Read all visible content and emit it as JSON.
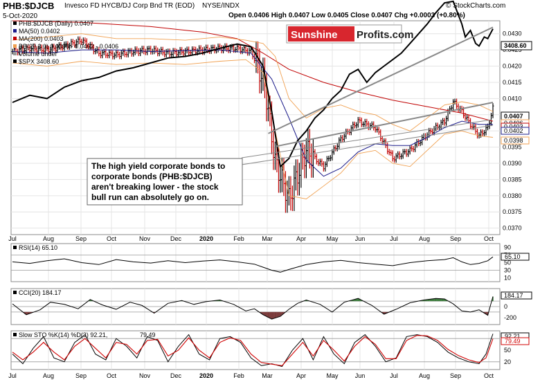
{
  "header": {
    "symbol": "PHB:$DJCB",
    "description": "Invesco FD HYCB/DJ Corp Bnd TR (EOD)",
    "exchange": "NYSE/INDX",
    "watermark": "© StockCharts.com",
    "date": "5-Oct-2020",
    "ohlc": "Open 0.0406 High 0.0407 Low 0.0405 Close 0.0407 Chg +0.0003 (+0.80%)"
  },
  "logo": {
    "part1": "Sunshine",
    "part2": "Profits.com"
  },
  "annotation": {
    "lines": [
      "The high yield corporate bonds to",
      "corporate bonds (PHB:$DJCB)",
      "aren't breaking lower - the stock",
      "bull run can absolutely go on."
    ]
  },
  "colors": {
    "price": "#000000",
    "ma50": "#1b1b8a",
    "ma200": "#c00000",
    "bb": "#f0a050",
    "spx": "#000000",
    "up": "#000000",
    "down": "#c00000",
    "osc": "#000000",
    "pos_fill": "#3a7a3a",
    "neg_fill": "#7a3a3a",
    "slow_d": "#d00000"
  },
  "chart_data": [
    {
      "type": "line",
      "panel": "price",
      "legend": [
        "PHB:$DJCB (Daily) 0.0407",
        "MA(50) 0.0402",
        "MA(200) 0.0403",
        "BB(20,2.0) 0.0398 - 0.0402 - 0.0406",
        "Volume undef",
        "$SPX 3408.60"
      ],
      "x_labels": [
        "Jul",
        "Aug",
        "Sep",
        "Oct",
        "Nov",
        "Dec",
        "2020",
        "Feb",
        "Mar",
        "Apr",
        "May",
        "Jun",
        "Jul",
        "Aug",
        "Sep",
        "Oct"
      ],
      "y_ticks": [
        "0.0430",
        "0.0425",
        "0.0420",
        "0.0415",
        "0.0410",
        "0.0405",
        "0.0400",
        "0.0395",
        "0.0390",
        "0.0385",
        "0.0380",
        "0.0375",
        "0.0370"
      ],
      "ylim": [
        0.0368,
        0.0434
      ],
      "last_labels": {
        "close": "0.0407",
        "spx": "3408.60",
        "bb_upper": "0.0406",
        "ma200": "0.0403",
        "ma50": "0.0402",
        "bb_lower": "0.0398"
      },
      "series": [
        {
          "key": "phb",
          "name": "PHB:$DJCB",
          "x": [
            0,
            10,
            20,
            32,
            40,
            50,
            60,
            70,
            80,
            90,
            100,
            110,
            120,
            130,
            138,
            142,
            146,
            152,
            160,
            170,
            180,
            190,
            200,
            210,
            220,
            230,
            240,
            250,
            255,
            260,
            265,
            270,
            275,
            278
          ],
          "y": [
            0.04245,
            0.04255,
            0.0425,
            0.04265,
            0.0428,
            0.0424,
            0.04235,
            0.04245,
            0.0425,
            0.0424,
            0.04245,
            0.0425,
            0.04255,
            0.04255,
            0.04245,
            0.042,
            0.0414,
            0.03905,
            0.0379,
            0.0394,
            0.0389,
            0.03975,
            0.0403,
            0.0401,
            0.03915,
            0.0394,
            0.0399,
            0.0403,
            0.0409,
            0.0406,
            0.0402,
            0.03985,
            0.0401,
            0.0407
          ]
        },
        {
          "key": "ma50",
          "name": "MA(50)",
          "x": [
            0,
            20,
            40,
            60,
            80,
            100,
            120,
            138,
            150,
            160,
            170,
            180,
            190,
            200,
            210,
            220,
            230,
            240,
            250,
            260,
            270,
            278
          ],
          "y": [
            0.04245,
            0.0424,
            0.0425,
            0.0425,
            0.04245,
            0.04248,
            0.0425,
            0.0424,
            0.0416,
            0.0404,
            0.0391,
            0.0386,
            0.03885,
            0.03935,
            0.0396,
            0.03955,
            0.03955,
            0.0398,
            0.0401,
            0.0403,
            0.0402,
            0.0402
          ]
        },
        {
          "key": "ma200",
          "name": "MA(200)",
          "x": [
            0,
            40,
            80,
            110,
            130,
            145,
            160,
            180,
            200,
            220,
            240,
            260,
            278
          ],
          "y": [
            0.0434,
            0.04335,
            0.04322,
            0.04305,
            0.04285,
            0.0424,
            0.0419,
            0.0415,
            0.0412,
            0.04095,
            0.04075,
            0.04055,
            0.0403
          ]
        },
        {
          "key": "bb_upper",
          "name": "BB upper",
          "x": [
            0,
            20,
            40,
            60,
            80,
            100,
            120,
            135,
            145,
            152,
            160,
            170,
            180,
            190,
            200,
            210,
            220,
            230,
            240,
            250,
            260,
            270,
            278
          ],
          "y": [
            0.0428,
            0.0429,
            0.043,
            0.04285,
            0.04285,
            0.0428,
            0.0429,
            0.0428,
            0.0427,
            0.0423,
            0.041,
            0.0404,
            0.0407,
            0.0408,
            0.0406,
            0.0405,
            0.0402,
            0.04,
            0.0404,
            0.0408,
            0.0409,
            0.0408,
            0.0406
          ]
        },
        {
          "key": "bb_lower",
          "name": "BB lower",
          "x": [
            0,
            20,
            40,
            60,
            80,
            100,
            120,
            135,
            145,
            152,
            160,
            170,
            180,
            190,
            200,
            210,
            220,
            230,
            240,
            250,
            260,
            270,
            278
          ],
          "y": [
            0.0421,
            0.042,
            0.04215,
            0.04205,
            0.0421,
            0.04205,
            0.04215,
            0.0422,
            0.0418,
            0.04,
            0.038,
            0.0379,
            0.0383,
            0.0387,
            0.0393,
            0.0394,
            0.039,
            0.0389,
            0.0394,
            0.0399,
            0.04,
            0.03985,
            0.0398
          ]
        },
        {
          "key": "spx",
          "name": "$SPX",
          "x": [
            0,
            10,
            20,
            30,
            40,
            50,
            60,
            70,
            80,
            90,
            100,
            110,
            120,
            130,
            138,
            145,
            150,
            155,
            160,
            165,
            170,
            175,
            180,
            185,
            190,
            195,
            200,
            205,
            210,
            215,
            220,
            225,
            230,
            235,
            240,
            245,
            250,
            255,
            260,
            262,
            265,
            268,
            270,
            273,
            275,
            278
          ],
          "y": [
            0.04088,
            0.0411,
            0.041,
            0.04135,
            0.04155,
            0.04165,
            0.04185,
            0.04195,
            0.0421,
            0.04225,
            0.0423,
            0.0424,
            0.04255,
            0.04268,
            0.0426,
            0.042,
            0.0406,
            0.0389,
            0.03915,
            0.0397,
            0.04,
            0.0404,
            0.04065,
            0.041,
            0.04125,
            0.04175,
            0.0419,
            0.0415,
            0.0418,
            0.042,
            0.0422,
            0.0424,
            0.0427,
            0.043,
            0.0433,
            0.04365,
            0.04395,
            0.044,
            0.0433,
            0.0429,
            0.0431,
            0.0427,
            0.04262,
            0.0429,
            0.04285,
            0.04315
          ]
        },
        {
          "key": "trend_upper",
          "name": "",
          "x": [
            148,
            278
          ],
          "y": [
            0.03992,
            0.0432
          ]
        },
        {
          "key": "trend_lower",
          "name": "",
          "x": [
            152,
            278
          ],
          "y": [
            0.03952,
            0.04088
          ]
        }
      ]
    },
    {
      "type": "line",
      "panel": "rsi",
      "legend": "RSI(14) 65.10",
      "last_label": "65.10",
      "y_ticks": [
        "90",
        "70",
        "50",
        "30",
        "10"
      ],
      "ylim": [
        0,
        100
      ],
      "levels": [
        70,
        30
      ],
      "x": [
        0,
        10,
        20,
        30,
        40,
        50,
        60,
        70,
        80,
        90,
        100,
        110,
        120,
        130,
        140,
        145,
        150,
        155,
        160,
        170,
        180,
        190,
        200,
        210,
        220,
        230,
        240,
        250,
        255,
        260,
        265,
        270,
        275,
        278
      ],
      "values": [
        52,
        48,
        55,
        60,
        50,
        45,
        58,
        52,
        49,
        55,
        50,
        54,
        57,
        52,
        46,
        38,
        30,
        25,
        32,
        45,
        52,
        56,
        50,
        46,
        42,
        50,
        55,
        58,
        63,
        52,
        45,
        48,
        55,
        65.1
      ]
    },
    {
      "type": "area",
      "panel": "cci",
      "legend": "CCI(20) 184.17",
      "last_label": "184.17",
      "y_ticks": [
        "200",
        "0",
        "-200"
      ],
      "ylim": [
        -330,
        330
      ],
      "levels": [
        100,
        0,
        -100
      ],
      "x": [
        0,
        8,
        16,
        22,
        30,
        38,
        45,
        52,
        60,
        68,
        75,
        82,
        90,
        98,
        105,
        112,
        120,
        128,
        135,
        140,
        145,
        150,
        155,
        160,
        165,
        170,
        178,
        185,
        192,
        200,
        208,
        215,
        222,
        230,
        238,
        245,
        250,
        255,
        260,
        265,
        270,
        275,
        278
      ],
      "values": [
        50,
        -150,
        -60,
        80,
        40,
        -40,
        130,
        30,
        -50,
        80,
        20,
        -120,
        60,
        110,
        40,
        90,
        120,
        40,
        -80,
        -40,
        -150,
        -230,
        -180,
        -50,
        60,
        120,
        40,
        -100,
        80,
        150,
        20,
        -140,
        -50,
        70,
        120,
        150,
        140,
        50,
        -80,
        -100,
        -60,
        -160,
        184.17
      ]
    },
    {
      "type": "line",
      "panel": "stoch",
      "legend": [
        "Slow STO %K(14) %D(3) 92.21,",
        "79.49"
      ],
      "last_labels": [
        "92.21",
        "79.49"
      ],
      "y_ticks": [
        "80",
        "50",
        "20"
      ],
      "ylim": [
        0,
        100
      ],
      "levels": [
        80,
        20
      ],
      "x_labels": [
        "Jul",
        "Aug",
        "Sep",
        "Oct",
        "Nov",
        "Dec",
        "2020",
        "Feb",
        "Mar",
        "Apr",
        "May",
        "Jun",
        "Jul",
        "Aug",
        "Sep",
        "Oct"
      ],
      "x": [
        0,
        6,
        12,
        18,
        24,
        30,
        36,
        42,
        48,
        54,
        60,
        66,
        72,
        78,
        84,
        90,
        96,
        102,
        108,
        114,
        120,
        126,
        132,
        138,
        144,
        150,
        156,
        162,
        168,
        174,
        180,
        186,
        192,
        198,
        204,
        210,
        216,
        222,
        228,
        234,
        240,
        246,
        252,
        258,
        264,
        270,
        274,
        278
      ],
      "k": [
        40,
        15,
        55,
        85,
        30,
        20,
        70,
        90,
        40,
        25,
        80,
        60,
        30,
        85,
        75,
        20,
        60,
        90,
        40,
        25,
        80,
        85,
        70,
        30,
        10,
        15,
        8,
        50,
        80,
        25,
        85,
        40,
        15,
        70,
        90,
        60,
        20,
        30,
        85,
        90,
        85,
        70,
        45,
        30,
        20,
        15,
        40,
        92.21
      ],
      "d": [
        45,
        25,
        45,
        70,
        45,
        25,
        60,
        80,
        55,
        30,
        70,
        65,
        40,
        75,
        78,
        35,
        50,
        82,
        50,
        30,
        70,
        82,
        75,
        40,
        18,
        14,
        10,
        40,
        70,
        35,
        75,
        50,
        22,
        60,
        85,
        65,
        28,
        28,
        75,
        88,
        87,
        75,
        52,
        36,
        25,
        18,
        30,
        79.49
      ]
    }
  ]
}
